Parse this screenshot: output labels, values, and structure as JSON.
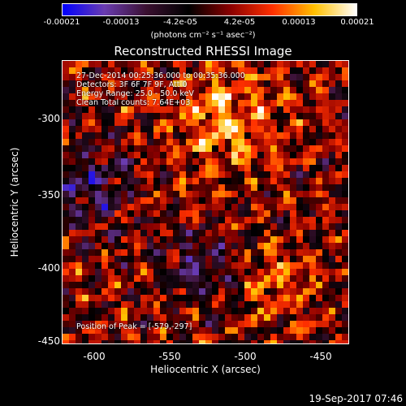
{
  "colorbar": {
    "ticks": [
      "-0.00021",
      "-0.00013",
      "-4.2e-05",
      "4.2e-05",
      "0.00013",
      "0.00021"
    ],
    "unit": "(photons cm⁻² s⁻¹ asec⁻²)",
    "colors": [
      "#0000ff",
      "#6a3cb0",
      "#3a1030",
      "#000000",
      "#8a0000",
      "#ff3000",
      "#ffc000",
      "#ffffff"
    ]
  },
  "title": "Reconstructed RHESSI Image",
  "info": {
    "time_range": "27-Dec-2014 00:25:36.000 to 00:35:36.000",
    "detectors": "Detectors: 3F 6F 7F 9F, Att 0",
    "energy": "Energy Range: 25.0 - 50.0 keV",
    "clean": "Clean     Total counts: 7.64E+03"
  },
  "peak": "Position of Peak = [-579,-297]",
  "axes": {
    "xlabel": "Heliocentric X (arcsec)",
    "ylabel": "Heliocentric Y (arcsec)",
    "xticks": [
      "-600",
      "-550",
      "-500",
      "-450"
    ],
    "yticks": [
      "-300",
      "-350",
      "-400",
      "-450"
    ]
  },
  "footer": "19-Sep-2017 07:46"
}
